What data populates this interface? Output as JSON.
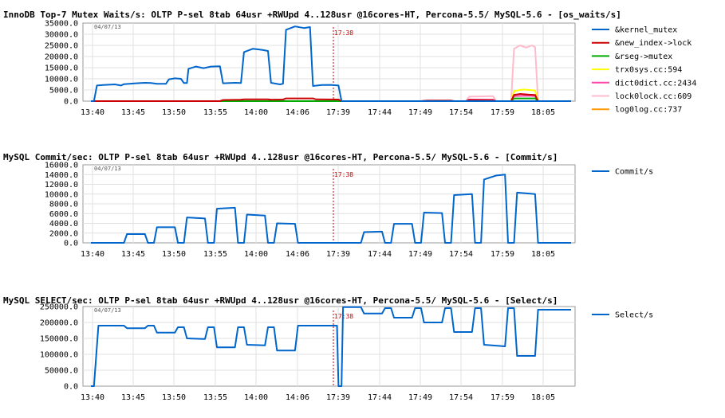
{
  "chart_data": [
    {
      "type": "line",
      "title": "InnoDB Top-7 Mutex Waits/s: OLTP P-sel 8tab 64usr +RWUpd 4..128usr @16cores-HT, Percona-5.5/ MySQL-5.6 - [os_waits/s]",
      "date": "04/07/13",
      "marker": "17:38",
      "ylim": [
        0,
        35000
      ],
      "yticks": [
        "0.0",
        "5000.0",
        "10000.0",
        "15000.0",
        "20000.0",
        "25000.0",
        "30000.0",
        "35000.0"
      ],
      "xticks": [
        "13:40",
        "13:45",
        "13:50",
        "13:55",
        "14:00",
        "14:06",
        "17:39",
        "17:44",
        "17:49",
        "17:54",
        "17:59",
        "18:05"
      ],
      "grid": true,
      "legend_position": "right",
      "series": [
        {
          "name": "&kernel_mutex",
          "color": "#0066cc",
          "points": [
            [
              0,
              0
            ],
            [
              0.2,
              0
            ],
            [
              0.4,
              7000
            ],
            [
              0.8,
              7200
            ],
            [
              1.6,
              7500
            ],
            [
              2.0,
              7000
            ],
            [
              2.2,
              7600
            ],
            [
              3.0,
              8000
            ],
            [
              3.6,
              8200
            ],
            [
              4.0,
              8100
            ],
            [
              4.4,
              7800
            ],
            [
              5.0,
              7800
            ],
            [
              5.2,
              9800
            ],
            [
              5.6,
              10200
            ],
            [
              6.0,
              10000
            ],
            [
              6.2,
              8100
            ],
            [
              6.4,
              8100
            ],
            [
              6.5,
              14500
            ],
            [
              7.0,
              15500
            ],
            [
              7.5,
              14800
            ],
            [
              8.0,
              15500
            ],
            [
              8.6,
              15600
            ],
            [
              8.8,
              8000
            ],
            [
              9.6,
              8200
            ],
            [
              10.0,
              8100
            ],
            [
              10.2,
              22000
            ],
            [
              10.8,
              23500
            ],
            [
              11.4,
              23000
            ],
            [
              11.8,
              22500
            ],
            [
              12.0,
              8200
            ],
            [
              12.6,
              7500
            ],
            [
              12.8,
              7800
            ],
            [
              13.0,
              32000
            ],
            [
              13.6,
              33500
            ],
            [
              14.2,
              32800
            ],
            [
              14.6,
              33200
            ],
            [
              14.8,
              6800
            ],
            [
              15.4,
              7200
            ],
            [
              16.0,
              7300
            ],
            [
              16.5,
              7000
            ],
            [
              16.7,
              0
            ],
            [
              32.0,
              0
            ]
          ]
        },
        {
          "name": "&new_index->lock",
          "color": "#cc0000",
          "points": [
            [
              0,
              0
            ],
            [
              8.6,
              0
            ],
            [
              8.8,
              500
            ],
            [
              10.0,
              600
            ],
            [
              10.2,
              800
            ],
            [
              11.8,
              800
            ],
            [
              12.0,
              600
            ],
            [
              12.8,
              700
            ],
            [
              13.0,
              1200
            ],
            [
              14.8,
              1200
            ],
            [
              15.0,
              800
            ],
            [
              16.5,
              700
            ],
            [
              16.7,
              0
            ],
            [
              22.0,
              0
            ],
            [
              22.4,
              200
            ],
            [
              24.0,
              200
            ],
            [
              24.2,
              0
            ],
            [
              25.0,
              0
            ],
            [
              25.2,
              500
            ],
            [
              26.8,
              400
            ],
            [
              27.0,
              0
            ],
            [
              28.0,
              0
            ],
            [
              28.2,
              2800
            ],
            [
              28.6,
              3200
            ],
            [
              29.2,
              2900
            ],
            [
              29.6,
              2800
            ],
            [
              29.8,
              0
            ],
            [
              32.0,
              0
            ]
          ]
        },
        {
          "name": "&rseg->mutex",
          "color": "#00aa00",
          "points": [
            [
              0,
              0
            ],
            [
              28.0,
              0
            ],
            [
              28.2,
              1200
            ],
            [
              29.6,
              1200
            ],
            [
              29.8,
              0
            ],
            [
              32.0,
              0
            ]
          ]
        },
        {
          "name": "trx0sys.cc:594",
          "color": "#ffff00",
          "points": [
            [
              0,
              0
            ],
            [
              28.0,
              0
            ],
            [
              28.2,
              4500
            ],
            [
              28.8,
              5200
            ],
            [
              29.6,
              4800
            ],
            [
              29.8,
              0
            ],
            [
              32.0,
              0
            ]
          ]
        },
        {
          "name": "dict0dict.cc:2434",
          "color": "#ff44aa",
          "points": [
            [
              0,
              0
            ],
            [
              25.0,
              0
            ],
            [
              25.2,
              700
            ],
            [
              26.8,
              600
            ],
            [
              27.0,
              0
            ],
            [
              28.0,
              0
            ],
            [
              28.2,
              2200
            ],
            [
              29.0,
              2400
            ],
            [
              29.6,
              2300
            ],
            [
              29.8,
              0
            ],
            [
              32.0,
              0
            ]
          ]
        },
        {
          "name": "lock0lock.cc:609",
          "color": "#ffbbcc",
          "points": [
            [
              0,
              0
            ],
            [
              22.0,
              0
            ],
            [
              22.2,
              300
            ],
            [
              24.0,
              300
            ],
            [
              24.2,
              0
            ],
            [
              25.0,
              0
            ],
            [
              25.2,
              2000
            ],
            [
              26.8,
              2200
            ],
            [
              27.0,
              0
            ],
            [
              28.0,
              0
            ],
            [
              28.2,
              23500
            ],
            [
              28.6,
              25000
            ],
            [
              29.0,
              24000
            ],
            [
              29.4,
              25000
            ],
            [
              29.6,
              24200
            ],
            [
              29.8,
              0
            ],
            [
              32.0,
              0
            ]
          ]
        },
        {
          "name": "log0log.cc:737",
          "color": "#ff9900",
          "points": [
            [
              0,
              0
            ],
            [
              32.0,
              0
            ]
          ]
        }
      ]
    },
    {
      "type": "line",
      "title": "MySQL Commit/sec: OLTP P-sel 8tab 64usr +RWUpd 4..128usr @16cores-HT, Percona-5.5/ MySQL-5.6 - [Commit/s]",
      "date": "04/07/13",
      "marker": "17:38",
      "ylim": [
        0,
        16000
      ],
      "yticks": [
        "0.0",
        "2000.0",
        "4000.0",
        "6000.0",
        "8000.0",
        "10000.0",
        "12000.0",
        "14000.0",
        "16000.0"
      ],
      "xticks": [
        "13:40",
        "13:45",
        "13:50",
        "13:55",
        "14:00",
        "14:06",
        "17:39",
        "17:44",
        "17:49",
        "17:54",
        "17:59",
        "18:05"
      ],
      "grid": true,
      "legend_position": "right",
      "series": [
        {
          "name": "Commit/s",
          "color": "#0066cc",
          "points": [
            [
              0,
              0
            ],
            [
              2.2,
              0
            ],
            [
              2.4,
              1800
            ],
            [
              3.6,
              1800
            ],
            [
              3.8,
              0
            ],
            [
              4.2,
              0
            ],
            [
              4.4,
              3200
            ],
            [
              5.6,
              3200
            ],
            [
              5.8,
              0
            ],
            [
              6.2,
              0
            ],
            [
              6.4,
              5200
            ],
            [
              7.6,
              5000
            ],
            [
              7.8,
              0
            ],
            [
              8.2,
              0
            ],
            [
              8.4,
              7000
            ],
            [
              9.6,
              7200
            ],
            [
              9.8,
              0
            ],
            [
              10.2,
              0
            ],
            [
              10.4,
              5800
            ],
            [
              11.6,
              5600
            ],
            [
              11.8,
              0
            ],
            [
              12.2,
              0
            ],
            [
              12.4,
              4000
            ],
            [
              13.6,
              3900
            ],
            [
              13.8,
              0
            ],
            [
              16.7,
              0
            ],
            [
              18.0,
              0
            ],
            [
              18.2,
              2200
            ],
            [
              19.4,
              2300
            ],
            [
              19.6,
              0
            ],
            [
              20.0,
              0
            ],
            [
              20.2,
              3900
            ],
            [
              21.4,
              3900
            ],
            [
              21.6,
              0
            ],
            [
              22.0,
              0
            ],
            [
              22.2,
              6200
            ],
            [
              23.4,
              6100
            ],
            [
              23.6,
              0
            ],
            [
              24.0,
              0
            ],
            [
              24.2,
              9800
            ],
            [
              25.4,
              10000
            ],
            [
              25.6,
              0
            ],
            [
              26.0,
              0
            ],
            [
              26.2,
              13000
            ],
            [
              27.0,
              13800
            ],
            [
              27.6,
              14000
            ],
            [
              27.8,
              0
            ],
            [
              28.2,
              0
            ],
            [
              28.4,
              10300
            ],
            [
              29.6,
              10000
            ],
            [
              29.8,
              0
            ],
            [
              32.0,
              0
            ]
          ]
        }
      ]
    },
    {
      "type": "line",
      "title": "MySQL SELECT/sec: OLTP P-sel 8tab 64usr +RWUpd 4..128usr @16cores-HT, Percona-5.5/ MySQL-5.6 - [Select/s]",
      "date": "04/07/13",
      "marker": "17:38",
      "ylim": [
        0,
        250000
      ],
      "yticks": [
        "0.0",
        "50000.0",
        "100000.0",
        "150000.0",
        "200000.0",
        "250000.0"
      ],
      "xticks": [
        "13:40",
        "13:45",
        "13:50",
        "13:55",
        "14:00",
        "14:06",
        "17:39",
        "17:44",
        "17:49",
        "17:54",
        "17:59",
        "18:05"
      ],
      "grid": true,
      "legend_position": "right",
      "series": [
        {
          "name": "Select/s",
          "color": "#0066cc",
          "points": [
            [
              0,
              0
            ],
            [
              0.2,
              0
            ],
            [
              0.5,
              190000
            ],
            [
              2.2,
              190000
            ],
            [
              2.4,
              182000
            ],
            [
              3.6,
              182000
            ],
            [
              3.8,
              190000
            ],
            [
              4.2,
              190000
            ],
            [
              4.4,
              168000
            ],
            [
              5.6,
              168000
            ],
            [
              5.8,
              185000
            ],
            [
              6.2,
              185000
            ],
            [
              6.4,
              150000
            ],
            [
              7.6,
              148000
            ],
            [
              7.8,
              185000
            ],
            [
              8.2,
              185000
            ],
            [
              8.4,
              122000
            ],
            [
              9.6,
              122000
            ],
            [
              9.8,
              185000
            ],
            [
              10.2,
              185000
            ],
            [
              10.4,
              130000
            ],
            [
              11.6,
              128000
            ],
            [
              11.8,
              185000
            ],
            [
              12.2,
              185000
            ],
            [
              12.4,
              112000
            ],
            [
              13.6,
              112000
            ],
            [
              13.8,
              190000
            ],
            [
              16.4,
              190000
            ],
            [
              16.5,
              0
            ],
            [
              16.7,
              0
            ],
            [
              16.8,
              248000
            ],
            [
              18.0,
              248000
            ],
            [
              18.2,
              228000
            ],
            [
              19.4,
              228000
            ],
            [
              19.6,
              245000
            ],
            [
              20.0,
              245000
            ],
            [
              20.2,
              215000
            ],
            [
              21.4,
              215000
            ],
            [
              21.6,
              245000
            ],
            [
              22.0,
              245000
            ],
            [
              22.2,
              200000
            ],
            [
              23.4,
              200000
            ],
            [
              23.6,
              245000
            ],
            [
              24.0,
              245000
            ],
            [
              24.2,
              170000
            ],
            [
              25.4,
              170000
            ],
            [
              25.6,
              245000
            ],
            [
              26.0,
              245000
            ],
            [
              26.2,
              130000
            ],
            [
              27.6,
              125000
            ],
            [
              27.8,
              245000
            ],
            [
              28.2,
              245000
            ],
            [
              28.4,
              95000
            ],
            [
              29.6,
              95000
            ],
            [
              29.8,
              240000
            ],
            [
              32.0,
              240000
            ]
          ]
        }
      ]
    }
  ]
}
